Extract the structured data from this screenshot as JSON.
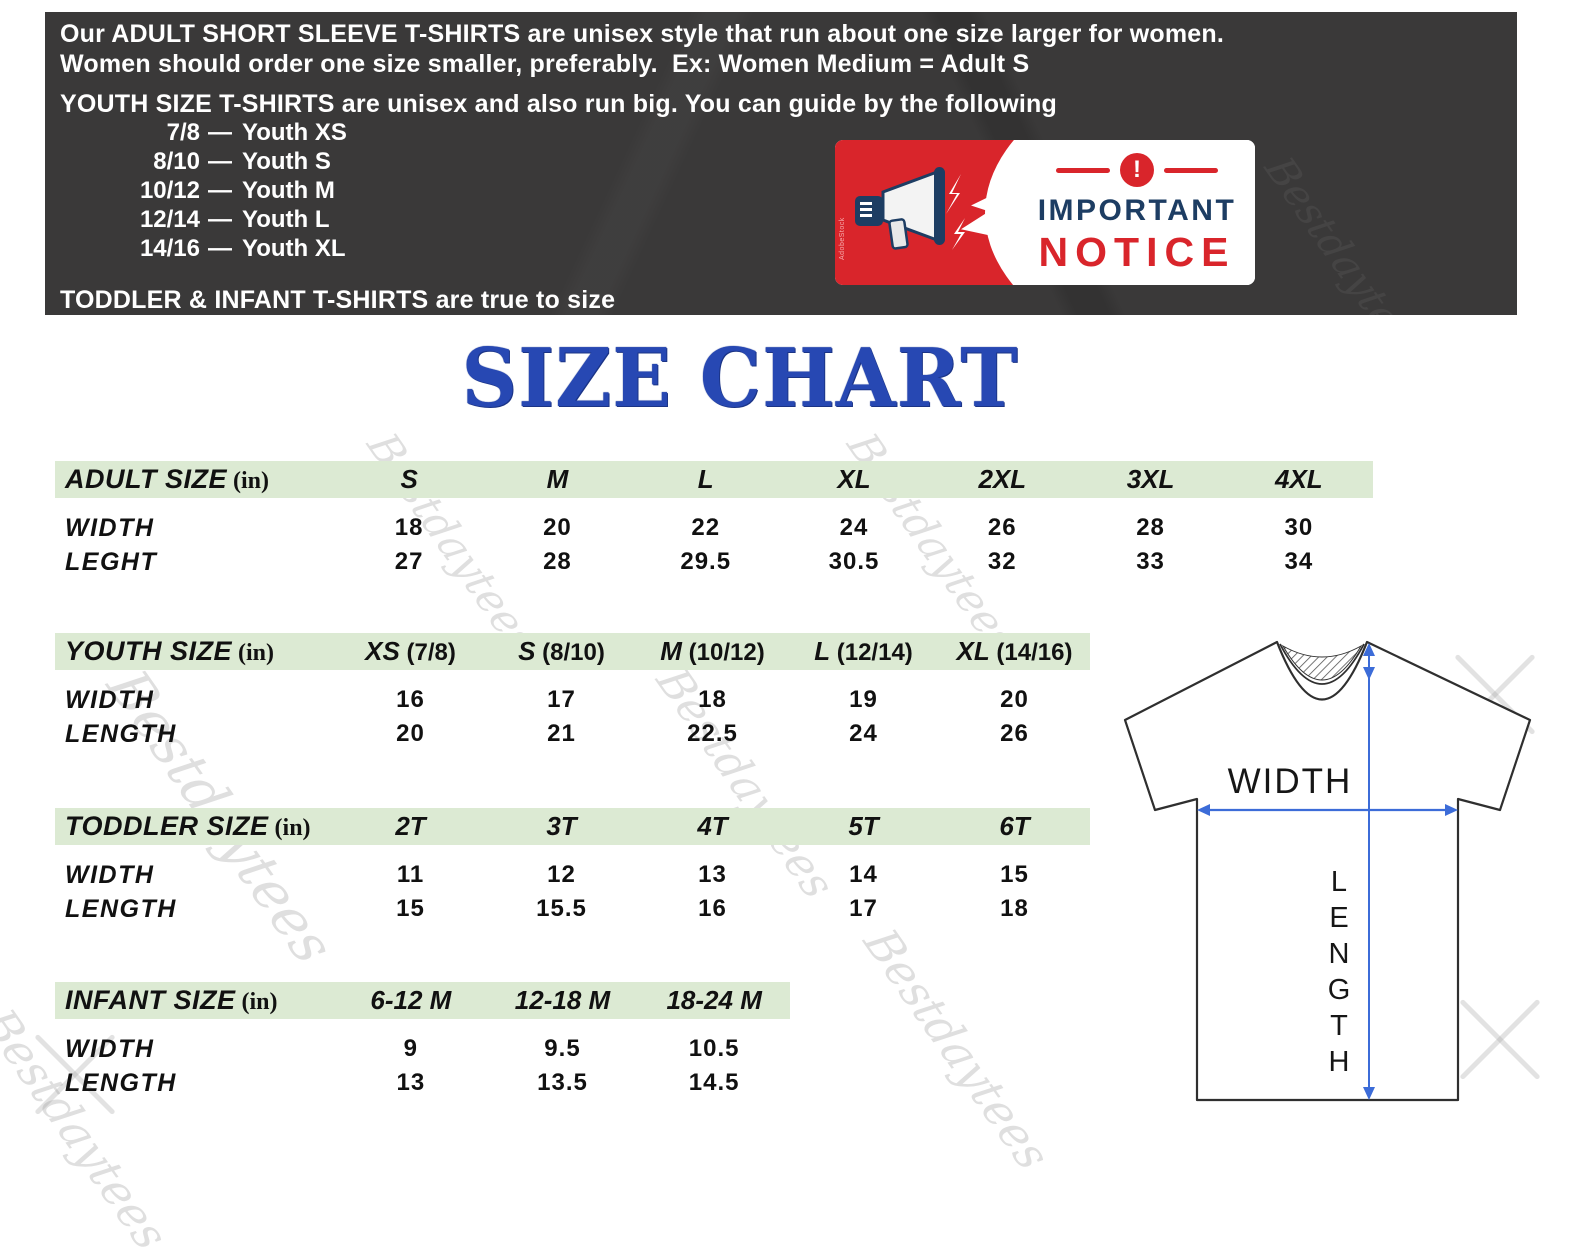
{
  "banner": {
    "line1": "Our ADULT SHORT SLEEVE T-SHIRTS are unisex style that run about one size larger for women.",
    "line2": "Women should order one size smaller, preferably.  Ex: Women Medium = Adult S",
    "youth_intro": "YOUTH SIZE T-SHIRTS are unisex and also run big. You can guide by the following",
    "guide_separator": "—",
    "youth_guide": [
      {
        "range": "7/8",
        "label": "Youth XS"
      },
      {
        "range": "8/10",
        "label": "Youth S"
      },
      {
        "range": "10/12",
        "label": "Youth M"
      },
      {
        "range": "12/14",
        "label": "Youth L"
      },
      {
        "range": "14/16",
        "label": "Youth XL"
      }
    ],
    "toddler_note": "TODDLER & INFANT T-SHIRTS are true to size"
  },
  "notice": {
    "word1": "IMPORTANT",
    "word2": "NOTICE",
    "exclamation": "!",
    "stock_credit": "AdobeStock"
  },
  "title": "SIZE CHART",
  "watermark_text": "Bestdaytees",
  "tables": [
    {
      "title": "ADULT SIZE",
      "unit": "(in)",
      "columns": [
        {
          "size": "S",
          "range": ""
        },
        {
          "size": "M",
          "range": ""
        },
        {
          "size": "L",
          "range": ""
        },
        {
          "size": "XL",
          "range": ""
        },
        {
          "size": "2XL",
          "range": ""
        },
        {
          "size": "3XL",
          "range": ""
        },
        {
          "size": "4XL",
          "range": ""
        }
      ],
      "rows": [
        {
          "label": "WIDTH",
          "values": [
            "18",
            "20",
            "22",
            "24",
            "26",
            "28",
            "30"
          ]
        },
        {
          "label": "LEGHT",
          "values": [
            "27",
            "28",
            "29.5",
            "30.5",
            "32",
            "33",
            "34"
          ]
        }
      ]
    },
    {
      "title": "YOUTH SIZE",
      "unit": "(in)",
      "columns": [
        {
          "size": "XS",
          "range": "(7/8)"
        },
        {
          "size": "S",
          "range": "(8/10)"
        },
        {
          "size": "M",
          "range": "(10/12)"
        },
        {
          "size": "L",
          "range": "(12/14)"
        },
        {
          "size": "XL",
          "range": "(14/16)"
        }
      ],
      "rows": [
        {
          "label": "WIDTH",
          "values": [
            "16",
            "17",
            "18",
            "19",
            "20"
          ]
        },
        {
          "label": "LENGTH",
          "values": [
            "20",
            "21",
            "22.5",
            "24",
            "26"
          ]
        }
      ]
    },
    {
      "title": "TODDLER SIZE",
      "unit": "(in)",
      "columns": [
        {
          "size": "2T",
          "range": ""
        },
        {
          "size": "3T",
          "range": ""
        },
        {
          "size": "4T",
          "range": ""
        },
        {
          "size": "5T",
          "range": ""
        },
        {
          "size": "6T",
          "range": ""
        }
      ],
      "rows": [
        {
          "label": "WIDTH",
          "values": [
            "11",
            "12",
            "13",
            "14",
            "15"
          ]
        },
        {
          "label": "LENGTH",
          "values": [
            "15",
            "15.5",
            "16",
            "17",
            "18"
          ]
        }
      ]
    },
    {
      "title": "INFANT SIZE",
      "unit": "(in)",
      "columns": [
        {
          "size": "6-12 M",
          "range": ""
        },
        {
          "size": "12-18 M",
          "range": ""
        },
        {
          "size": "18-24 M",
          "range": ""
        }
      ],
      "rows": [
        {
          "label": "WIDTH",
          "values": [
            "9",
            "9.5",
            "10.5"
          ]
        },
        {
          "label": "LENGTH",
          "values": [
            "13",
            "13.5",
            "14.5"
          ]
        }
      ]
    }
  ],
  "diagram": {
    "width_label": "WIDTH",
    "length_label": "LENGTH"
  },
  "colors": {
    "banner_bg": "#3a3939",
    "title_blue": "#2748b3",
    "table_header_green": "#dcead3",
    "notice_red": "#d9252b",
    "notice_navy": "#1d3d63",
    "arrow_blue": "#3c6cd8"
  }
}
